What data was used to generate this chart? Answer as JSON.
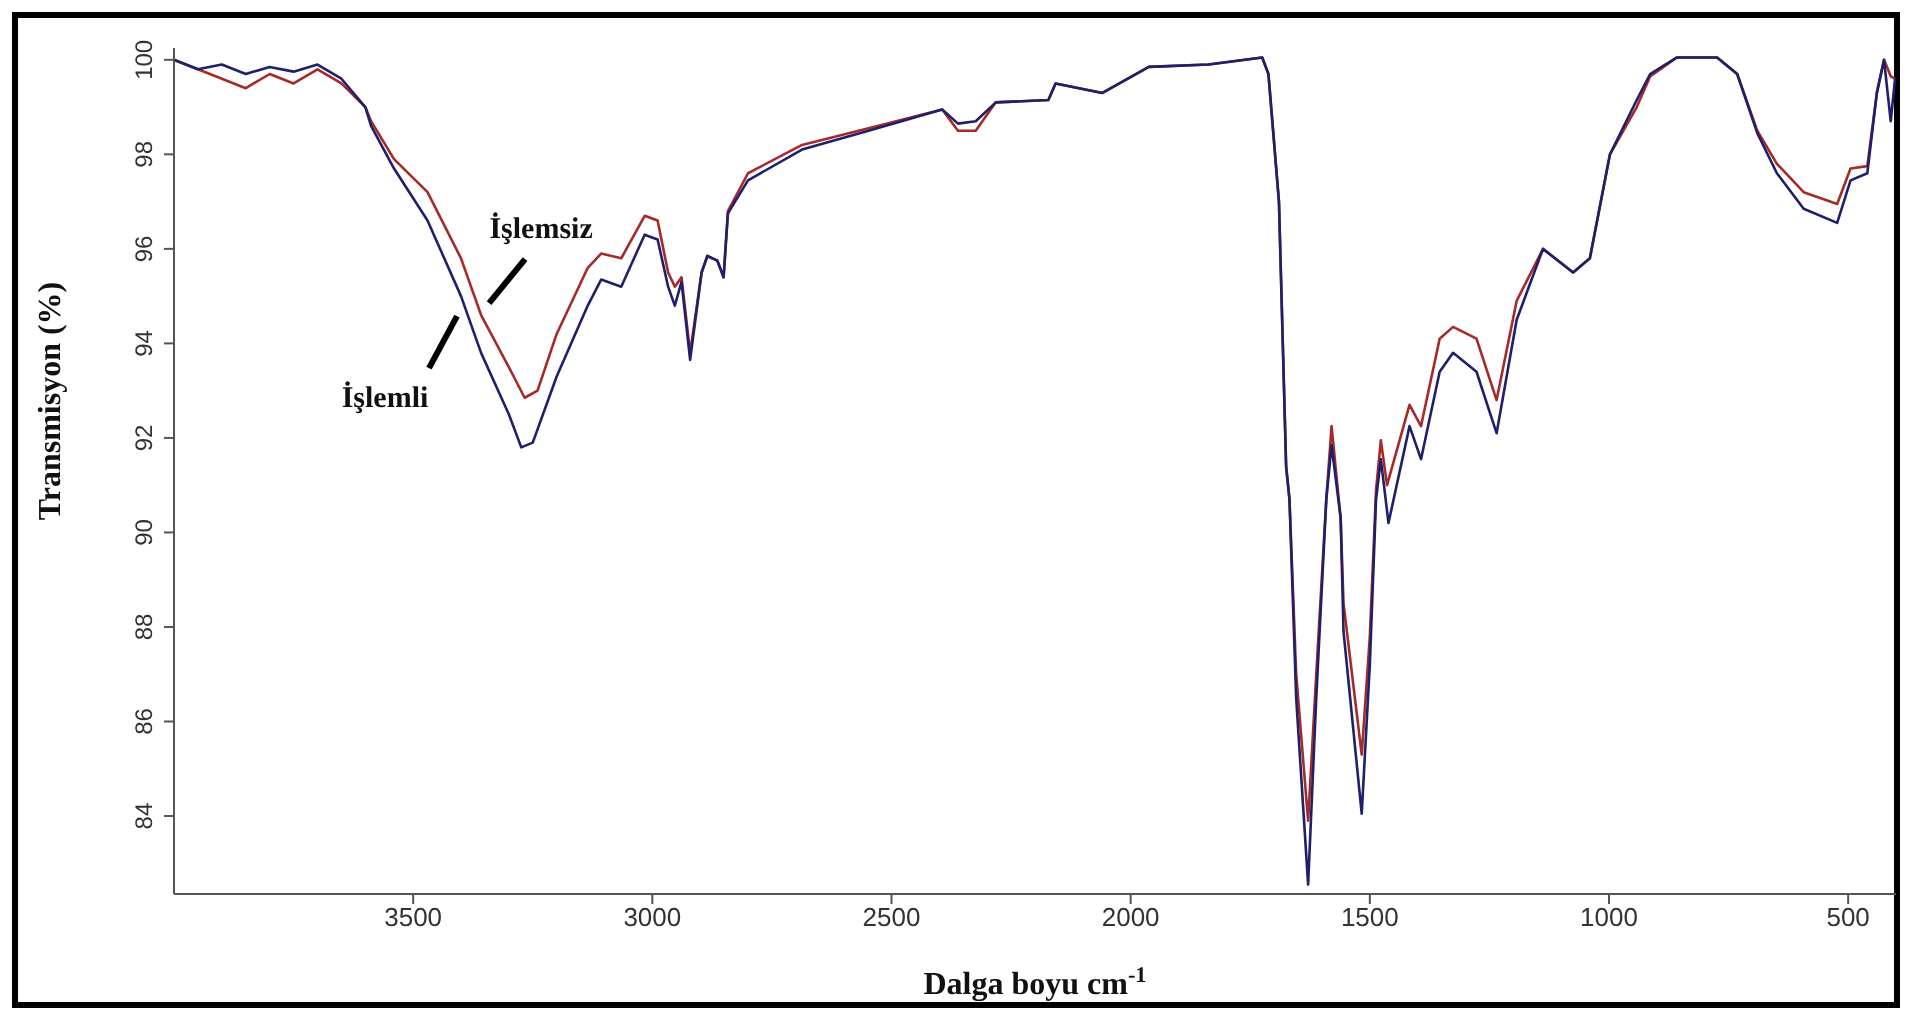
{
  "chart_data": {
    "type": "line",
    "xlabel": "Dalga boyu cm$^{-1}$",
    "ylabel": "Transmisyon (%)",
    "xlim": [
      4000,
      400
    ],
    "xticks": [
      3500,
      3000,
      2500,
      2000,
      1500,
      1000,
      500
    ],
    "ylim": [
      82.35,
      100.25
    ],
    "yticks": [
      84,
      86,
      88,
      90,
      92,
      94,
      96,
      98,
      100
    ],
    "grid": false,
    "legend": false,
    "series": [
      {
        "name": "İşlemsiz",
        "color": "#a52a2a",
        "x": [
          4000,
          3950,
          3900,
          3850,
          3800,
          3750,
          3700,
          3650,
          3600,
          3588,
          3540,
          3470,
          3400,
          3358,
          3300,
          3267,
          3240,
          3200,
          3135,
          3107,
          3065,
          3016,
          2989,
          2967,
          2953,
          2939,
          2921,
          2897,
          2885,
          2864,
          2851,
          2842,
          2800,
          2687,
          2548,
          2394,
          2361,
          2324,
          2282,
          2172,
          2157,
          2059,
          1962,
          1837,
          1725,
          1712,
          1690,
          1675,
          1668,
          1654,
          1629,
          1612,
          1591,
          1580,
          1561,
          1555,
          1517,
          1500,
          1487,
          1477,
          1464,
          1417,
          1393,
          1354,
          1326,
          1277,
          1235,
          1193,
          1138,
          1075,
          1040,
          998,
          942,
          914,
          858,
          774,
          732,
          690,
          649,
          593,
          523,
          495,
          460,
          440,
          425,
          411,
          402
        ],
        "values": [
          100,
          99.8,
          99.6,
          99.4,
          99.7,
          99.5,
          99.8,
          99.5,
          99.0,
          98.7,
          97.9,
          97.2,
          95.8,
          94.6,
          93.5,
          92.85,
          93.0,
          94.2,
          95.6,
          95.9,
          95.8,
          96.7,
          96.6,
          95.5,
          95.2,
          95.4,
          93.8,
          95.5,
          95.85,
          95.75,
          95.4,
          96.8,
          97.6,
          98.2,
          98.55,
          98.95,
          98.5,
          98.5,
          99.1,
          99.15,
          99.5,
          99.3,
          99.85,
          99.9,
          100.05,
          99.7,
          97.0,
          91.4,
          90.7,
          87.0,
          83.9,
          87.0,
          90.7,
          92.25,
          90.3,
          88.5,
          85.3,
          87.8,
          90.9,
          91.95,
          91.0,
          92.7,
          92.25,
          94.1,
          94.35,
          94.1,
          92.8,
          94.9,
          96.0,
          95.5,
          95.8,
          98.0,
          99.0,
          99.65,
          100.05,
          100.05,
          99.7,
          98.5,
          97.8,
          97.2,
          96.95,
          97.7,
          97.75,
          99.3,
          100.0,
          99.65,
          99.6
        ]
      },
      {
        "name": "İşlemli",
        "color": "#1f1f6b",
        "x": [
          4000,
          3950,
          3900,
          3850,
          3800,
          3750,
          3700,
          3650,
          3600,
          3588,
          3540,
          3470,
          3400,
          3358,
          3300,
          3274,
          3250,
          3200,
          3135,
          3107,
          3065,
          3016,
          2989,
          2967,
          2953,
          2939,
          2921,
          2897,
          2885,
          2864,
          2851,
          2842,
          2800,
          2687,
          2548,
          2394,
          2361,
          2324,
          2282,
          2172,
          2157,
          2059,
          1962,
          1837,
          1725,
          1712,
          1690,
          1675,
          1668,
          1654,
          1629,
          1612,
          1591,
          1580,
          1561,
          1555,
          1517,
          1500,
          1487,
          1477,
          1461,
          1417,
          1393,
          1354,
          1326,
          1277,
          1235,
          1193,
          1138,
          1075,
          1040,
          998,
          942,
          914,
          858,
          774,
          732,
          690,
          649,
          593,
          523,
          495,
          460,
          440,
          425,
          411,
          402
        ],
        "values": [
          100,
          99.8,
          99.9,
          99.7,
          99.85,
          99.75,
          99.9,
          99.6,
          99.0,
          98.6,
          97.7,
          96.6,
          95.0,
          93.8,
          92.5,
          91.8,
          91.9,
          93.3,
          94.8,
          95.35,
          95.2,
          96.3,
          96.2,
          95.2,
          94.8,
          95.3,
          93.65,
          95.5,
          95.85,
          95.75,
          95.4,
          96.75,
          97.45,
          98.1,
          98.5,
          98.95,
          98.65,
          98.7,
          99.1,
          99.15,
          99.5,
          99.3,
          99.85,
          99.9,
          100.05,
          99.7,
          97.0,
          91.4,
          90.7,
          86.5,
          82.55,
          86.5,
          90.7,
          91.85,
          90.3,
          87.9,
          84.05,
          87.2,
          90.7,
          91.55,
          90.2,
          92.25,
          91.55,
          93.4,
          93.8,
          93.4,
          92.1,
          94.5,
          96.0,
          95.5,
          95.8,
          98.0,
          99.15,
          99.7,
          100.05,
          100.05,
          99.7,
          98.45,
          97.6,
          96.85,
          96.55,
          97.45,
          97.6,
          99.3,
          100.0,
          98.7,
          99.6
        ]
      }
    ]
  }
}
